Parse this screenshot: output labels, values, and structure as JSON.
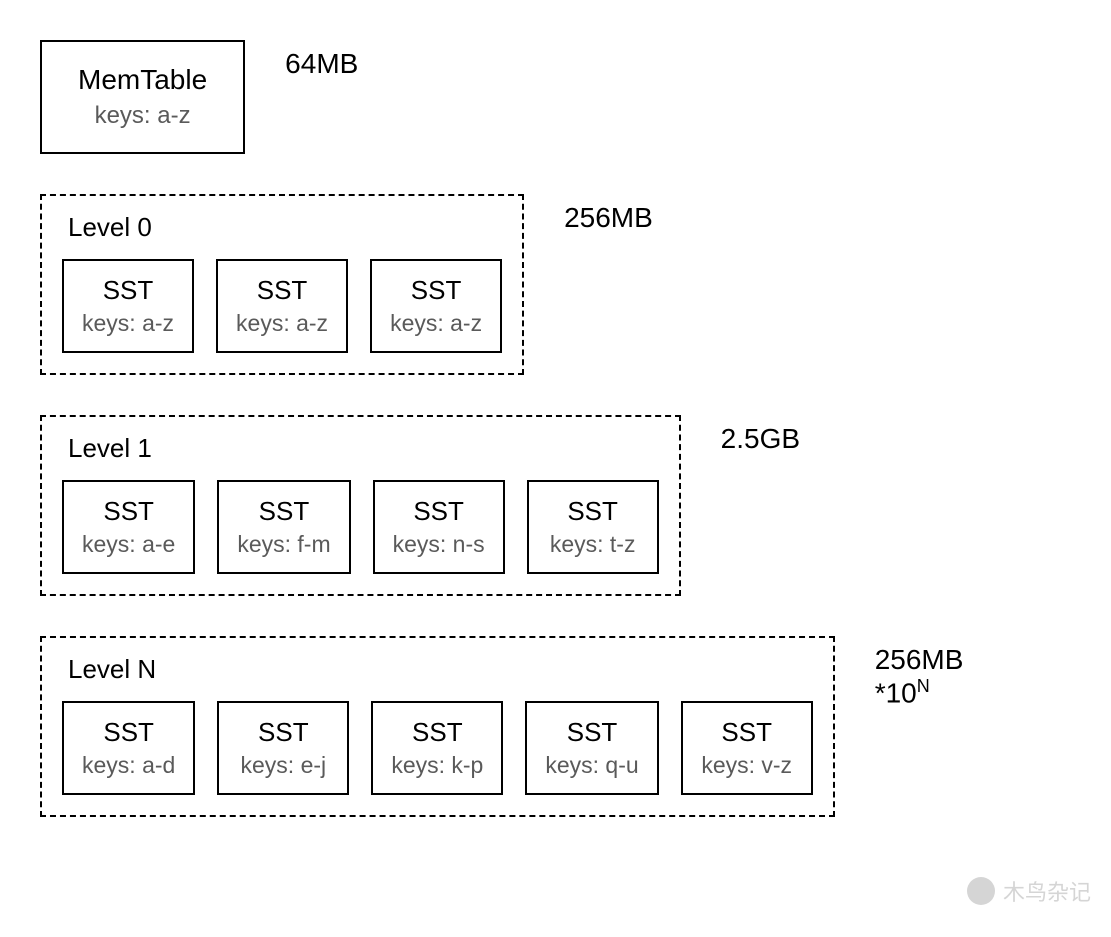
{
  "diagram_type": "lsm-tree-levels",
  "background_color": "#ffffff",
  "border_color": "#000000",
  "title_color": "#000000",
  "subtext_color": "#5a5a5a",
  "font_family": "Helvetica Neue",
  "memtable": {
    "title": "MemTable",
    "keys": "keys: a-z",
    "size_label": "64MB",
    "border_style": "solid"
  },
  "levels": [
    {
      "title": "Level 0",
      "size_label": "256MB",
      "border_style": "dashed",
      "ssts": [
        {
          "title": "SST",
          "keys": "keys: a-z"
        },
        {
          "title": "SST",
          "keys": "keys: a-z"
        },
        {
          "title": "SST",
          "keys": "keys: a-z"
        }
      ]
    },
    {
      "title": "Level 1",
      "size_label": "2.5GB",
      "border_style": "dashed",
      "ssts": [
        {
          "title": "SST",
          "keys": "keys: a-e"
        },
        {
          "title": "SST",
          "keys": "keys: f-m"
        },
        {
          "title": "SST",
          "keys": "keys: n-s"
        },
        {
          "title": "SST",
          "keys": "keys: t-z"
        }
      ]
    },
    {
      "title": "Level N",
      "size_label_base": "256MB",
      "size_label_mult": "*10",
      "size_label_exp": "N",
      "border_style": "dashed",
      "ssts": [
        {
          "title": "SST",
          "keys": "keys: a-d"
        },
        {
          "title": "SST",
          "keys": "keys: e-j"
        },
        {
          "title": "SST",
          "keys": "keys: k-p"
        },
        {
          "title": "SST",
          "keys": "keys: q-u"
        },
        {
          "title": "SST",
          "keys": "keys: v-z"
        }
      ]
    }
  ],
  "watermark": {
    "text": "木鸟杂记",
    "icon_color": "#888888",
    "text_color": "#888888",
    "opacity": 0.35
  }
}
